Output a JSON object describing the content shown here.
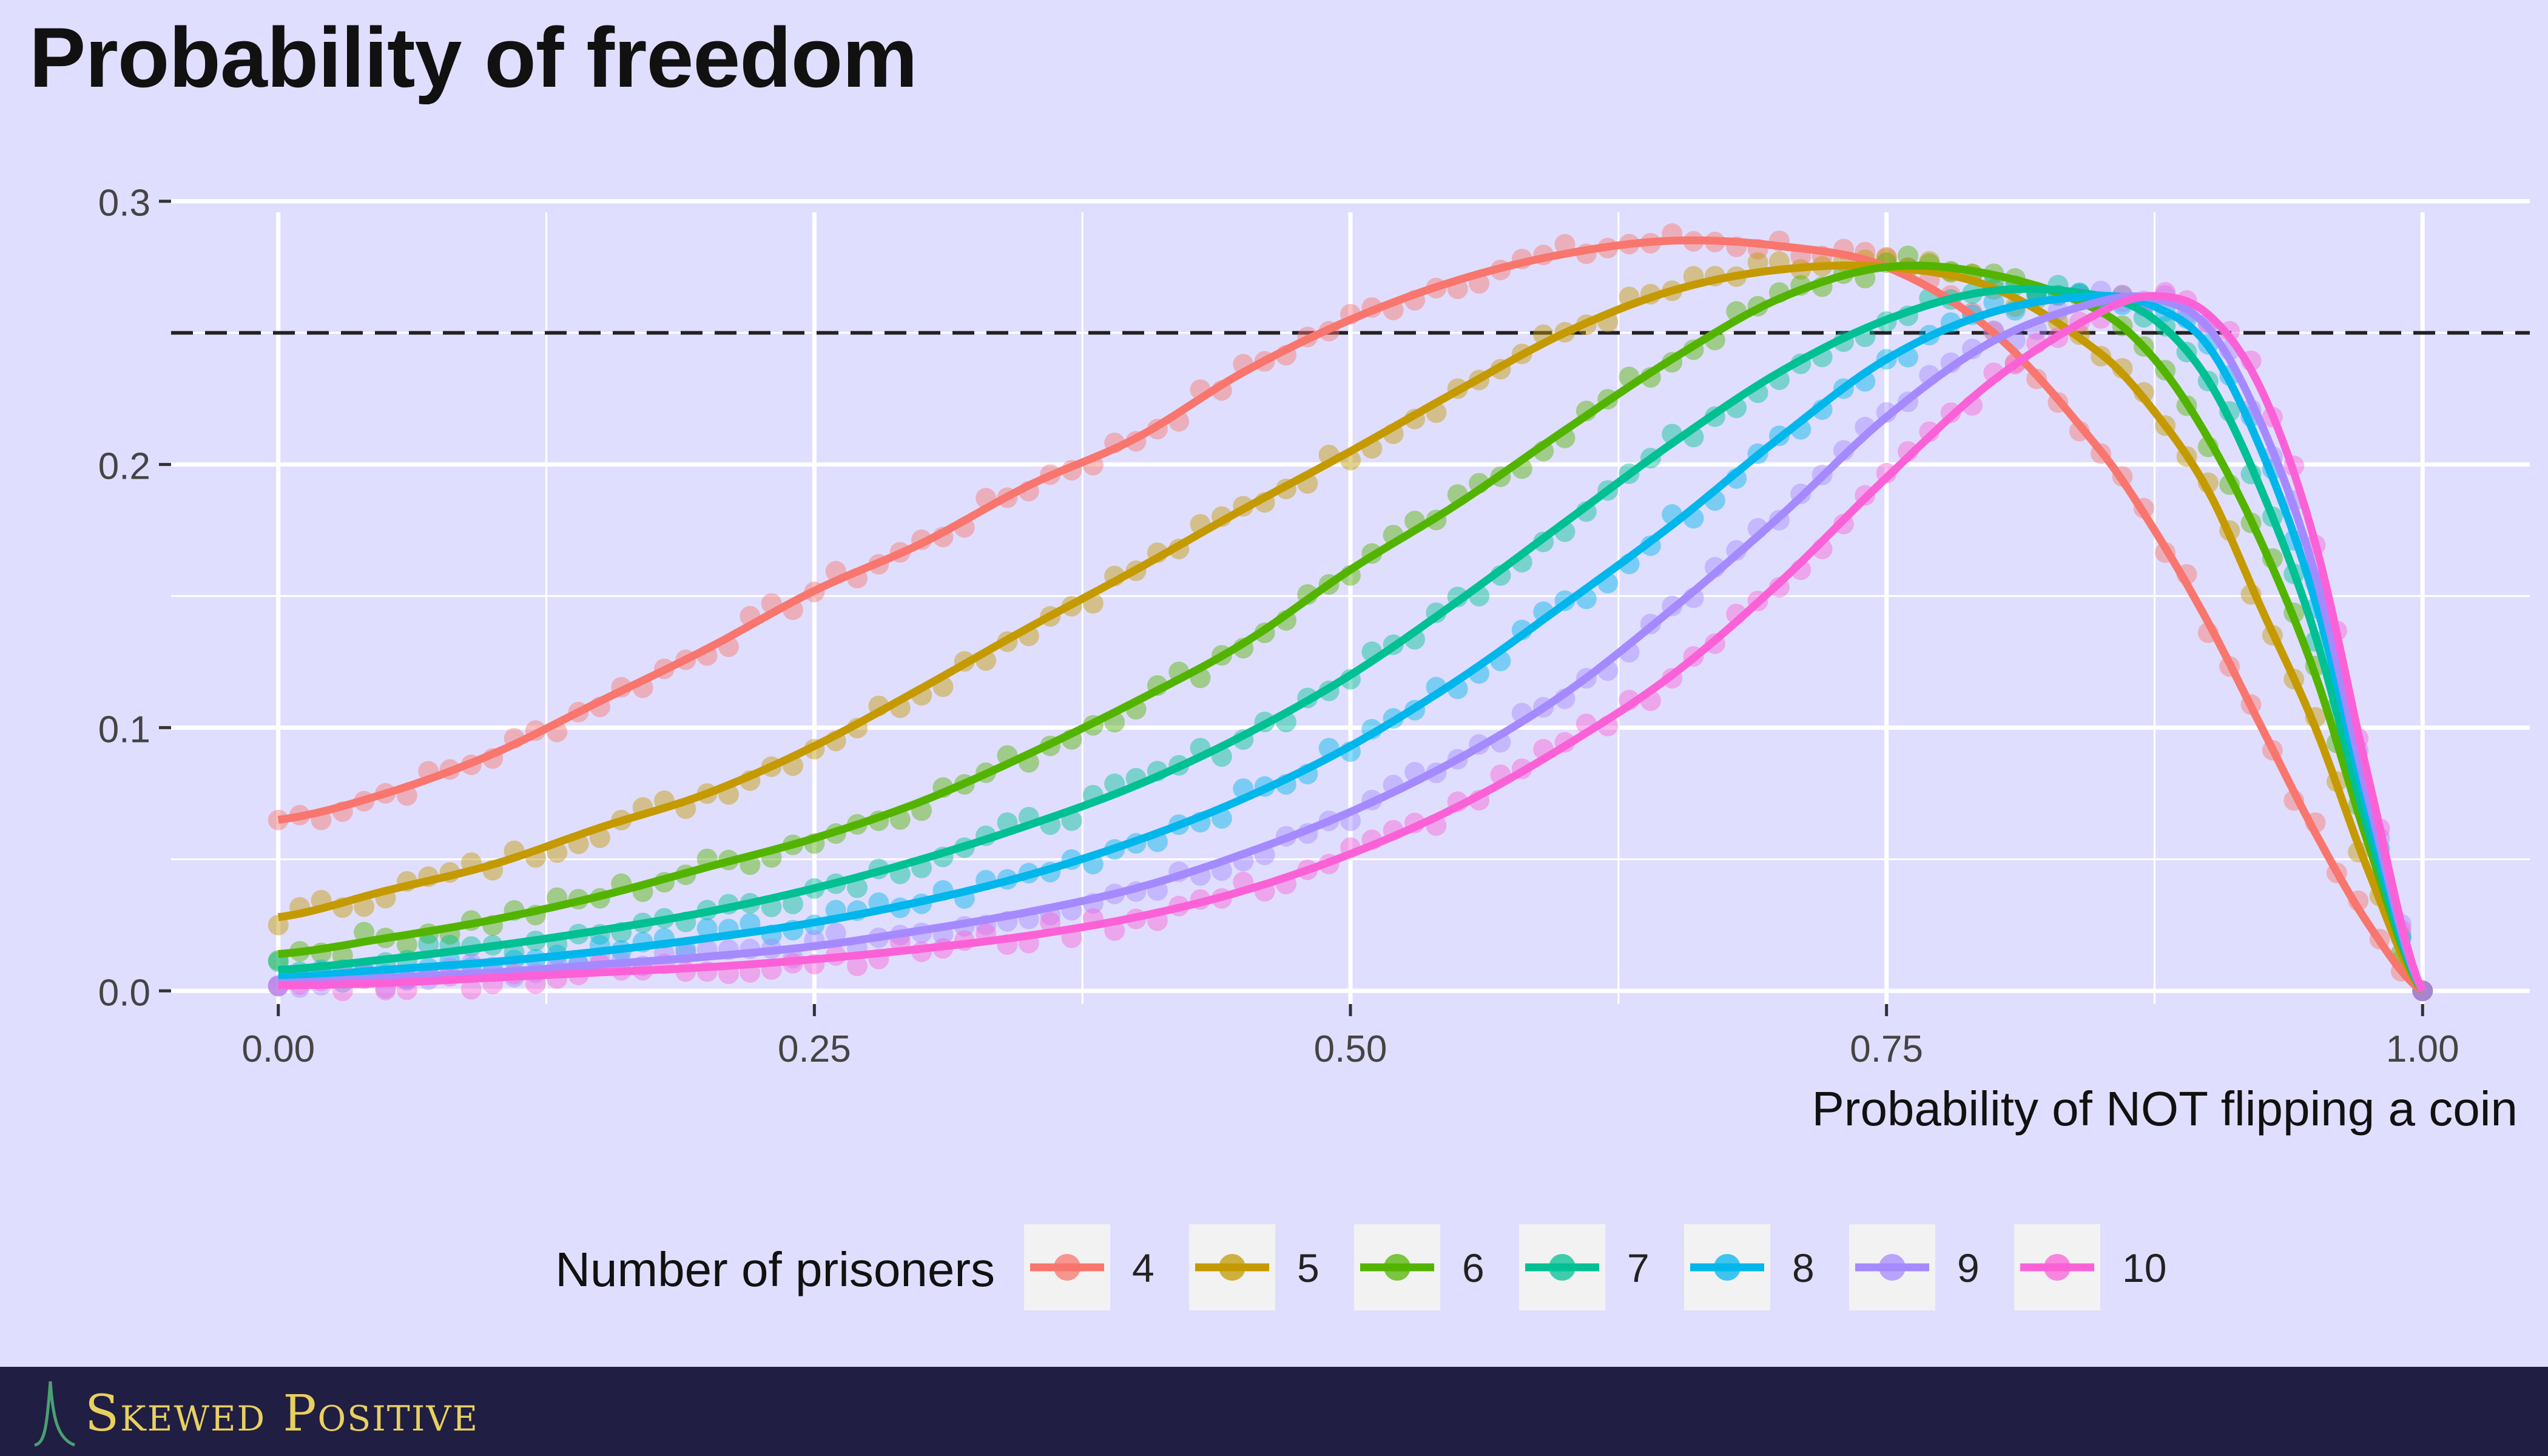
{
  "title": "Probability of freedom",
  "brand": {
    "name": "Skewed Positive",
    "logo_icon": "skewed-distribution-logo-icon"
  },
  "colors": {
    "background": "#e0defe",
    "panel": "#e0defe",
    "grid": "#ffffff",
    "reference_line": "#222222",
    "footer": "#201e42",
    "brand_text": "#e8d060"
  },
  "chart_data": {
    "type": "line",
    "title": "Probability of freedom",
    "xlabel": "Probability of NOT flipping a coin",
    "ylabel": "",
    "xlim": [
      -0.05,
      1.05
    ],
    "ylim": [
      -0.005,
      0.305
    ],
    "x_ticks": [
      0,
      0.25,
      0.5,
      0.75,
      1
    ],
    "x_tick_labels": [
      "0.00",
      "0.25",
      "0.50",
      "0.75",
      "1.00"
    ],
    "y_ticks": [
      0,
      0.1,
      0.2,
      0.3
    ],
    "y_tick_labels": [
      "0.0",
      "0.1",
      "0.2",
      "0.3"
    ],
    "grid": true,
    "reference_line": {
      "y": 0.25,
      "style": "dashed"
    },
    "legend": {
      "title": "Number of prisoners",
      "position": "bottom"
    },
    "points_per_series": "simulated points scattered around each smooth curve",
    "x": [
      0,
      0.05,
      0.1,
      0.15,
      0.2,
      0.25,
      0.3,
      0.35,
      0.4,
      0.45,
      0.5,
      0.55,
      0.6,
      0.65,
      0.7,
      0.75,
      0.8,
      0.85,
      0.875,
      0.9,
      0.925,
      0.95,
      0.975,
      1.0
    ],
    "series": [
      {
        "name": "4",
        "color": "#f8766d",
        "values": [
          0.065,
          0.075,
          0.09,
          0.11,
          0.13,
          0.152,
          0.17,
          0.192,
          0.21,
          0.235,
          0.255,
          0.27,
          0.28,
          0.285,
          0.283,
          0.275,
          0.25,
          0.205,
          0.175,
          0.14,
          0.1,
          0.06,
          0.025,
          0.0
        ]
      },
      {
        "name": "5",
        "color": "#c49a00",
        "values": [
          0.028,
          0.038,
          0.048,
          0.062,
          0.075,
          0.093,
          0.115,
          0.138,
          0.16,
          0.183,
          0.205,
          0.228,
          0.25,
          0.266,
          0.274,
          0.275,
          0.267,
          0.242,
          0.22,
          0.19,
          0.145,
          0.1,
          0.045,
          0.0
        ]
      },
      {
        "name": "6",
        "color": "#53b400",
        "values": [
          0.014,
          0.02,
          0.027,
          0.036,
          0.047,
          0.058,
          0.072,
          0.09,
          0.11,
          0.132,
          0.16,
          0.185,
          0.213,
          0.24,
          0.263,
          0.275,
          0.272,
          0.258,
          0.24,
          0.21,
          0.17,
          0.12,
          0.055,
          0.0
        ]
      },
      {
        "name": "7",
        "color": "#00c094",
        "values": [
          0.008,
          0.012,
          0.017,
          0.023,
          0.03,
          0.039,
          0.05,
          0.063,
          0.078,
          0.097,
          0.12,
          0.148,
          0.178,
          0.208,
          0.235,
          0.255,
          0.266,
          0.264,
          0.255,
          0.232,
          0.19,
          0.135,
          0.06,
          0.0
        ]
      },
      {
        "name": "8",
        "color": "#00b6eb",
        "values": [
          0.005,
          0.008,
          0.011,
          0.015,
          0.02,
          0.026,
          0.034,
          0.044,
          0.057,
          0.073,
          0.093,
          0.118,
          0.147,
          0.177,
          0.21,
          0.24,
          0.258,
          0.264,
          0.26,
          0.245,
          0.205,
          0.148,
          0.067,
          0.0
        ]
      },
      {
        "name": "9",
        "color": "#a58aff",
        "values": [
          0.003,
          0.005,
          0.007,
          0.01,
          0.013,
          0.017,
          0.023,
          0.03,
          0.039,
          0.052,
          0.068,
          0.088,
          0.113,
          0.145,
          0.18,
          0.218,
          0.247,
          0.262,
          0.263,
          0.252,
          0.215,
          0.158,
          0.072,
          0.0
        ]
      },
      {
        "name": "10",
        "color": "#fb61d7",
        "values": [
          0.002,
          0.003,
          0.005,
          0.007,
          0.009,
          0.012,
          0.016,
          0.021,
          0.028,
          0.038,
          0.052,
          0.07,
          0.093,
          0.12,
          0.155,
          0.195,
          0.232,
          0.258,
          0.264,
          0.257,
          0.228,
          0.17,
          0.08,
          0.0
        ]
      }
    ]
  }
}
